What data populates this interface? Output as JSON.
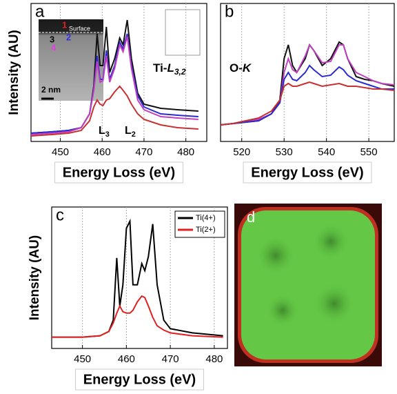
{
  "chart_data": [
    {
      "type": "line",
      "panel": "a",
      "xlabel": "Energy Loss (eV)",
      "ylabel": "Intensity (AU)",
      "x": [
        443,
        448,
        452,
        455,
        457,
        458,
        458.8,
        459.5,
        460.2,
        461,
        461.8,
        463,
        464.2,
        465,
        466,
        467,
        468.5,
        470,
        474,
        478,
        483
      ],
      "xlim": [
        443,
        485
      ],
      "xticks": [
        450,
        460,
        470,
        480
      ],
      "ylim": [
        0,
        1
      ],
      "grid": true,
      "series": [
        {
          "color": "#111111",
          "values": [
            0.06,
            0.07,
            0.08,
            0.1,
            0.2,
            0.4,
            0.78,
            0.55,
            0.55,
            0.83,
            0.5,
            0.6,
            0.75,
            0.7,
            0.88,
            0.6,
            0.35,
            0.27,
            0.24,
            0.23,
            0.22
          ]
        },
        {
          "color": "#2a2ad0",
          "values": [
            0.06,
            0.07,
            0.08,
            0.1,
            0.2,
            0.38,
            0.62,
            0.45,
            0.45,
            0.66,
            0.45,
            0.55,
            0.72,
            0.67,
            0.78,
            0.55,
            0.33,
            0.25,
            0.2,
            0.19,
            0.18
          ]
        },
        {
          "color": "#c040c0",
          "values": [
            0.05,
            0.06,
            0.07,
            0.1,
            0.2,
            0.37,
            0.58,
            0.43,
            0.44,
            0.62,
            0.43,
            0.53,
            0.7,
            0.65,
            0.76,
            0.53,
            0.3,
            0.23,
            0.18,
            0.17,
            0.16
          ]
        },
        {
          "color": "#c83030",
          "values": [
            0.04,
            0.05,
            0.06,
            0.08,
            0.15,
            0.25,
            0.3,
            0.27,
            0.26,
            0.3,
            0.31,
            0.36,
            0.4,
            0.37,
            0.33,
            0.27,
            0.2,
            0.16,
            0.12,
            0.1,
            0.09
          ]
        }
      ],
      "annotations": [
        {
          "text": "Ti-",
          "italic": "L",
          "sub": "3,2"
        },
        {
          "text": "L",
          "sub": "3"
        },
        {
          "text": "L",
          "sub": "2"
        }
      ],
      "inset": {
        "surface": "Surface",
        "points": [
          "1",
          "2",
          "3",
          "4"
        ],
        "scale": "2 nm"
      }
    },
    {
      "type": "line",
      "panel": "b",
      "xlabel": "Energy Loss (eV)",
      "x": [
        515,
        518,
        521,
        524,
        527,
        529,
        530,
        531,
        532,
        533,
        535,
        536,
        537,
        539,
        541,
        543,
        544,
        545,
        547,
        549,
        551,
        553,
        556
      ],
      "xlim": [
        515,
        556
      ],
      "xticks": [
        520,
        530,
        540,
        550
      ],
      "ylim": [
        0,
        1
      ],
      "grid": true,
      "series": [
        {
          "color": "#111111",
          "values": [
            0.12,
            0.13,
            0.14,
            0.15,
            0.2,
            0.3,
            0.6,
            0.7,
            0.55,
            0.5,
            0.6,
            0.7,
            0.66,
            0.55,
            0.6,
            0.72,
            0.7,
            0.6,
            0.47,
            0.45,
            0.44,
            0.42,
            0.4
          ]
        },
        {
          "color": "#c040c0",
          "values": [
            0.12,
            0.13,
            0.15,
            0.16,
            0.2,
            0.28,
            0.5,
            0.6,
            0.52,
            0.5,
            0.62,
            0.7,
            0.66,
            0.57,
            0.58,
            0.7,
            0.7,
            0.6,
            0.5,
            0.47,
            0.44,
            0.42,
            0.41
          ]
        },
        {
          "color": "#2a2ad0",
          "values": [
            0.12,
            0.13,
            0.14,
            0.15,
            0.2,
            0.28,
            0.45,
            0.5,
            0.45,
            0.44,
            0.5,
            0.55,
            0.52,
            0.47,
            0.48,
            0.54,
            0.52,
            0.48,
            0.44,
            0.42,
            0.4,
            0.38,
            0.38
          ]
        },
        {
          "color": "#c83030",
          "values": [
            0.12,
            0.13,
            0.15,
            0.17,
            0.22,
            0.3,
            0.4,
            0.42,
            0.4,
            0.4,
            0.42,
            0.43,
            0.42,
            0.4,
            0.41,
            0.42,
            0.41,
            0.4,
            0.4,
            0.39,
            0.38,
            0.38,
            0.37
          ]
        }
      ],
      "annotations": [
        {
          "text": "O-",
          "italic": "K"
        }
      ]
    },
    {
      "type": "line",
      "panel": "c",
      "xlabel": "Energy Loss (eV)",
      "ylabel": "Intensity (AU)",
      "x": [
        443,
        450,
        454,
        456,
        457,
        457.8,
        458.5,
        459.2,
        460,
        460.8,
        461.5,
        462.5,
        463.5,
        464.2,
        465,
        466,
        467,
        468.5,
        470,
        475,
        482
      ],
      "xlim": [
        443,
        483
      ],
      "xticks": [
        450,
        460,
        470,
        480
      ],
      "ylim": [
        0,
        1
      ],
      "grid": true,
      "legend": "top-right",
      "series": [
        {
          "name": "Ti(4+)",
          "color": "#000000",
          "values": [
            0.08,
            0.08,
            0.09,
            0.12,
            0.2,
            0.64,
            0.3,
            0.45,
            0.85,
            0.9,
            0.45,
            0.45,
            0.6,
            0.55,
            0.65,
            0.88,
            0.45,
            0.2,
            0.14,
            0.11,
            0.09
          ]
        },
        {
          "name": "Ti(2+)",
          "color": "#e02020",
          "values": [
            0.08,
            0.08,
            0.09,
            0.12,
            0.18,
            0.25,
            0.3,
            0.26,
            0.25,
            0.25,
            0.27,
            0.33,
            0.37,
            0.36,
            0.3,
            0.22,
            0.16,
            0.13,
            0.11,
            0.09,
            0.08
          ]
        }
      ],
      "annotations": []
    }
  ],
  "panel_d": {
    "label": "d"
  }
}
